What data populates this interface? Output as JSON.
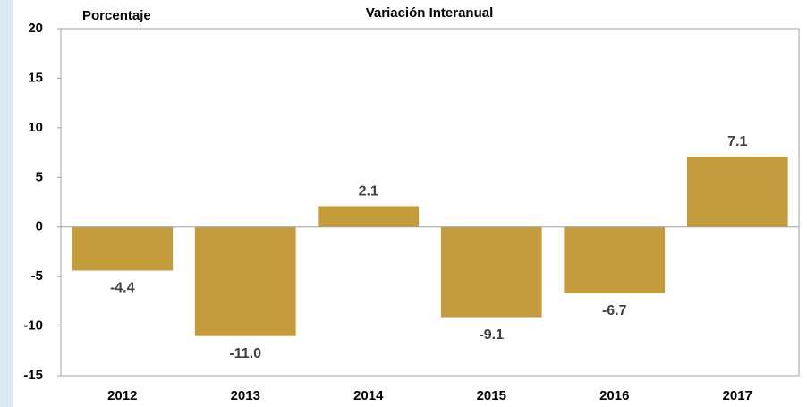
{
  "chart_data": {
    "type": "bar",
    "title": "Variación Interanual",
    "y_label": "Porcentaje",
    "categories": [
      "2012",
      "2013",
      "2014",
      "2015",
      "2016",
      "2017"
    ],
    "values": [
      -4.4,
      -11.0,
      2.1,
      -9.1,
      -6.7,
      7.1
    ],
    "value_labels": [
      "-4.4",
      "-11.0",
      "2.1",
      "-9.1",
      "-6.7",
      "7.1"
    ],
    "color": "#c49c3c",
    "ylim": [
      -15,
      20
    ],
    "yticks": [
      -15,
      -10,
      -5,
      0,
      5,
      10,
      15,
      20
    ],
    "grid": false
  }
}
